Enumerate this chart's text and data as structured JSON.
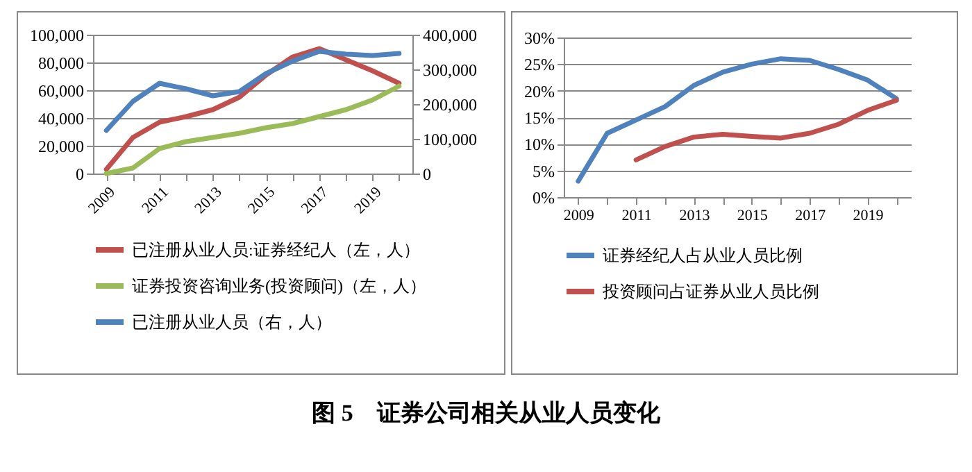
{
  "chart_data": [
    {
      "type": "line",
      "title": "图 5　证券公司相关从业人员变化",
      "categories": [
        "2009",
        null,
        "2011",
        null,
        "2013",
        null,
        "2015",
        null,
        "2017",
        null,
        "2019",
        null
      ],
      "series": [
        {
          "name": "已注册从业人员:证券经纪人（左，人）",
          "color": "#c0504d",
          "values": [
            3000,
            26000,
            37000,
            41000,
            46000,
            55000,
            71000,
            84000,
            90000,
            82000,
            74000,
            65000
          ]
        },
        {
          "name": "证券投资咨询业务(投资顾问)（左，人）",
          "color": "#9bbb59",
          "values": [
            0,
            4000,
            18000,
            23000,
            26000,
            29000,
            33000,
            36000,
            41000,
            46000,
            53000,
            63000
          ]
        },
        {
          "name": "已注册从业人员（右，人）",
          "color": "#4f81bd",
          "axis": "y2",
          "values": [
            124000,
            208000,
            260000,
            244000,
            224000,
            236000,
            288000,
            324000,
            352000,
            344000,
            340000,
            346000
          ]
        }
      ],
      "ylim": [
        0,
        100000
      ],
      "yticks": [
        0,
        {
          "value": 20000,
          "label": "20,000"
        },
        {
          "value": 40000,
          "label": "40,000"
        },
        {
          "value": 60000,
          "label": "60,000"
        },
        {
          "value": 80000,
          "label": "80,000"
        },
        {
          "value": 100000,
          "label": "100,000"
        }
      ],
      "y2lim": [
        0,
        400000
      ],
      "y2ticks": [
        0,
        {
          "value": 100000,
          "label": "100,000"
        },
        {
          "value": 200000,
          "label": "200,000"
        },
        {
          "value": 300000,
          "label": "300,000"
        },
        {
          "value": 400000,
          "label": "400,000"
        }
      ],
      "grid": "y",
      "legend": "bottom"
    },
    {
      "type": "line",
      "categories": [
        "2009",
        null,
        "2011",
        null,
        "2013",
        null,
        "2015",
        null,
        "2017",
        null,
        "2019",
        null
      ],
      "series": [
        {
          "name": "证券经纪人占从业人员比例",
          "color": "#4f81bd",
          "values": [
            3,
            12,
            14.5,
            17,
            21,
            23.5,
            25,
            26,
            25.7,
            24,
            22,
            18.5
          ]
        },
        {
          "name": "投资顾问占证券从业人员比例",
          "color": "#c0504d",
          "values": [
            null,
            null,
            7,
            9.5,
            11.3,
            11.8,
            11.4,
            11.1,
            12,
            13.7,
            16.3,
            18.2
          ]
        }
      ],
      "ylim": [
        0,
        30
      ],
      "yticks": [
        {
          "value": 0,
          "label": "0%"
        },
        {
          "value": 5,
          "label": "5%"
        },
        {
          "value": 10,
          "label": "10%"
        },
        {
          "value": 15,
          "label": "15%"
        },
        {
          "value": 20,
          "label": "20%"
        },
        {
          "value": 25,
          "label": "25%"
        },
        {
          "value": 30,
          "label": "30%"
        }
      ],
      "grid": "y",
      "legend": "bottom"
    }
  ]
}
